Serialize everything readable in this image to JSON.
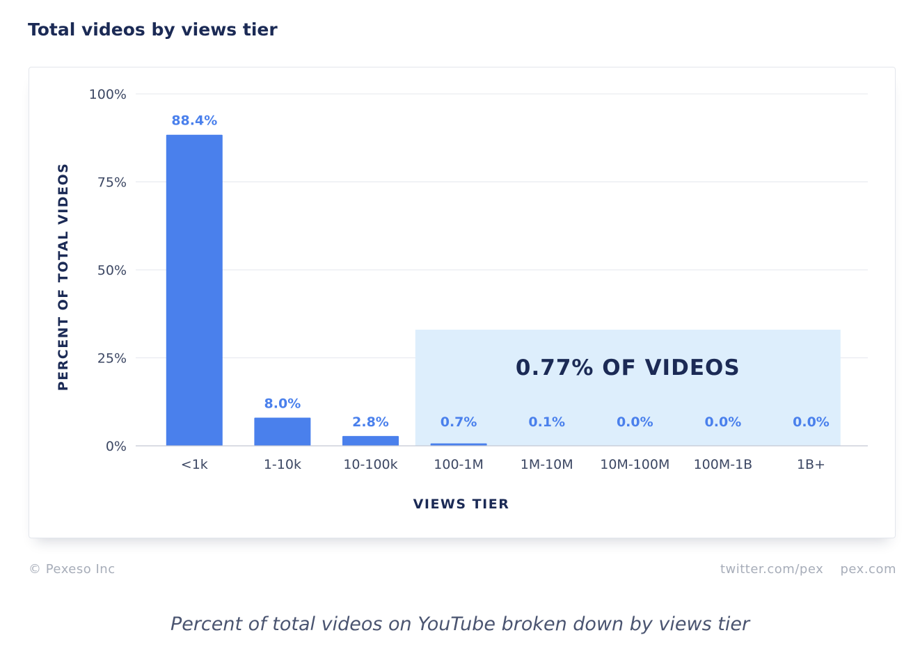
{
  "title": "Total videos by views tier",
  "footer": {
    "copyright": "© Pexeso Inc",
    "twitter": "twitter.com/pex",
    "site": "pex.com"
  },
  "caption": "Percent of total videos on YouTube broken down by views tier",
  "colors": {
    "bar": "#4a80ec",
    "label": "#4a80ec",
    "highlight_fill": "#ddeefc",
    "highlight_text": "#1b2a55",
    "axis_text": "#3c4763",
    "grid": "#e4e7ee",
    "baseline": "#c3c8d3"
  },
  "chart_data": {
    "type": "bar",
    "categories": [
      "<1k",
      "1-10k",
      "10-100k",
      "100-1M",
      "1M-10M",
      "10M-100M",
      "100M-1B",
      "1B+"
    ],
    "values": [
      88.4,
      8.0,
      2.8,
      0.7,
      0.1,
      0.0,
      0.0,
      0.0
    ],
    "data_labels": [
      "88.4%",
      "8.0%",
      "2.8%",
      "0.7%",
      "0.1%",
      "0.0%",
      "0.0%",
      "0.0%"
    ],
    "xlabel": "VIEWS TIER",
    "ylabel": "PERCENT OF TOTAL VIDEOS",
    "ylim": [
      0,
      100
    ],
    "yticks": [
      0,
      25,
      50,
      75,
      100
    ],
    "ytick_labels": [
      "0%",
      "25%",
      "50%",
      "75%",
      "100%"
    ],
    "grid": true,
    "annotation": {
      "text": "0.77% OF VIDEOS",
      "from_category": "100-1M",
      "to_category": "1B+",
      "top_value": 33
    }
  }
}
